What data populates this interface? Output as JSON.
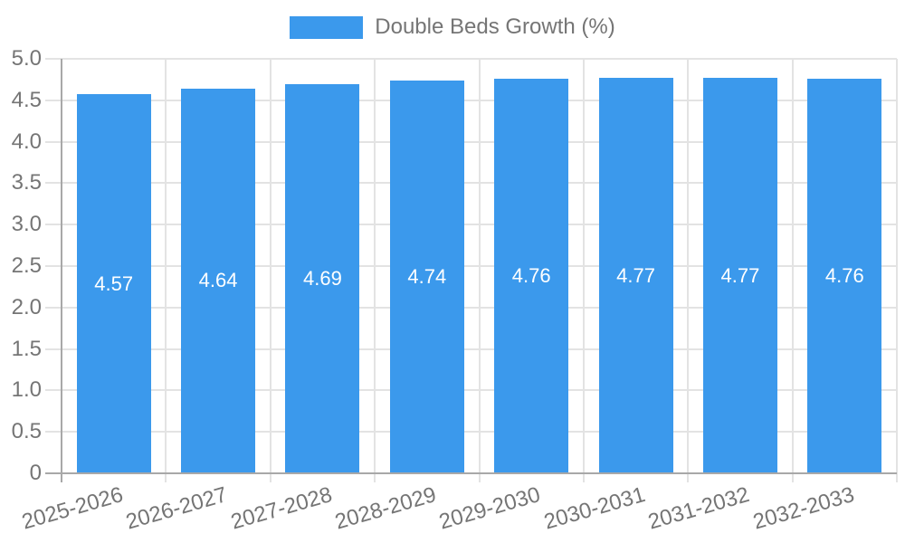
{
  "chart_data": {
    "type": "bar",
    "title": "",
    "xlabel": "",
    "ylabel": "",
    "categories": [
      "2025-2026",
      "2026-2027",
      "2027-2028",
      "2028-2029",
      "2029-2030",
      "2030-2031",
      "2031-2032",
      "2032-2033"
    ],
    "series": [
      {
        "name": "Double Beds Growth (%)",
        "values": [
          4.57,
          4.64,
          4.69,
          4.74,
          4.76,
          4.77,
          4.77,
          4.76
        ]
      }
    ],
    "value_labels": [
      "4.57",
      "4.64",
      "4.69",
      "4.74",
      "4.76",
      "4.77",
      "4.77",
      "4.76"
    ],
    "ylim": [
      0,
      5
    ],
    "yticks": [
      "0",
      "0.5",
      "1.0",
      "1.5",
      "2.0",
      "2.5",
      "3.0",
      "3.5",
      "4.0",
      "4.5",
      "5.0"
    ],
    "grid": true,
    "legend_position": "top",
    "colors": {
      "bar": "#3B99EC",
      "bar_value_label": "#FFFFFF",
      "text": "#757575",
      "grid": "#E3E3E3",
      "axis": "#A8A8A8",
      "background": "#FFFFFF"
    }
  }
}
